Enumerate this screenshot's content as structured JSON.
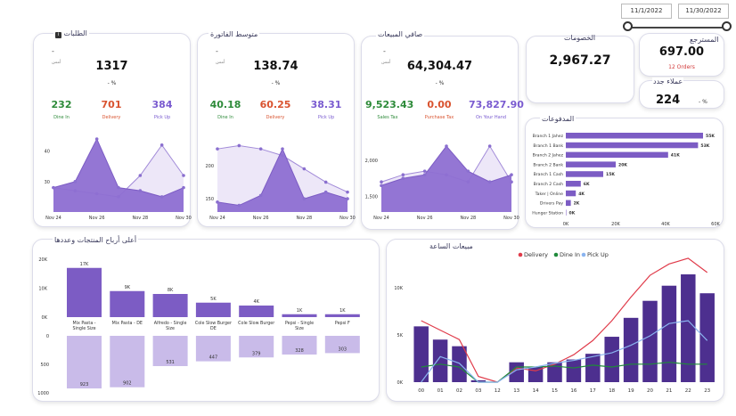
{
  "date_slicer": {
    "start": "11/1/2022",
    "end": "11/30/2022"
  },
  "orders_card": {
    "title": "الطلبات",
    "info_badge": "i",
    "dash": "-",
    "sub": "أمس",
    "value": "1317",
    "pct": "- %",
    "metrics": [
      {
        "value": "232",
        "label": "Dine In",
        "color": "#2e8b3a"
      },
      {
        "value": "701",
        "label": "Delivery",
        "color": "#d9532f"
      },
      {
        "value": "384",
        "label": "Pick Up",
        "color": "#7a5bd0"
      }
    ]
  },
  "avg_invoice_card": {
    "title": "متوسط الفاتورة",
    "dash": "-",
    "sub": "أمس",
    "value": "138.74",
    "pct": "- %",
    "metrics": [
      {
        "value": "40.18",
        "label": "Dine In",
        "color": "#2e8b3a"
      },
      {
        "value": "60.25",
        "label": "Delivery",
        "color": "#d9532f"
      },
      {
        "value": "38.31",
        "label": "Pick Up",
        "color": "#7a5bd0"
      }
    ]
  },
  "net_sales_card": {
    "title": "صافي المبيعات",
    "dash": "-",
    "sub": "أمس",
    "value": "64,304.47",
    "pct": "- %",
    "metrics": [
      {
        "value": "9,523.43",
        "label": "Sales Tax",
        "color": "#2e8b3a"
      },
      {
        "value": "0.00",
        "label": "Purchase Tax",
        "color": "#d9532f"
      },
      {
        "value": "73,827.90",
        "label": "On Your Hand",
        "color": "#7a5bd0"
      }
    ]
  },
  "discounts_card": {
    "title": "الخصومات",
    "value": "2,967.27"
  },
  "returns_card": {
    "title": "المسترجع",
    "value": "697.00",
    "orders": "12 Orders"
  },
  "new_customers_card": {
    "title": "عملاء جدد",
    "value": "224",
    "pct": "%",
    "dash": "-"
  },
  "payments_card": {
    "title": "المدفوعات"
  },
  "top_products_card": {
    "title": "أعلى أرباح المنتجات وعددها"
  },
  "hourly_card": {
    "title": "مبيعات الساعة"
  },
  "colors": {
    "accent": "#7c5cc4",
    "accent_light": "#c9bbe9",
    "delivery": "#e03b4a",
    "dinein": "#1f8a3a",
    "pickup": "#8ab4f0",
    "bar_dark": "#4d2f8f"
  },
  "chart_data": [
    {
      "name": "orders_trend",
      "type": "area",
      "x": [
        "Nov 24",
        "Nov 25",
        "Nov 26",
        "Nov 27",
        "Nov 28",
        "Nov 29",
        "Nov 30"
      ],
      "xticks": [
        "Nov 24",
        "Nov 26",
        "Nov 28",
        "Nov 30"
      ],
      "yticks": [
        30,
        40
      ],
      "ylim": [
        20,
        44
      ],
      "series": [
        {
          "values": [
            28,
            30,
            44,
            28,
            27,
            25,
            28
          ]
        },
        {
          "values": [
            28,
            27,
            26,
            25,
            32,
            42,
            32
          ]
        }
      ]
    },
    {
      "name": "avg_invoice_trend",
      "type": "area",
      "x": [
        "Nov 24",
        "Nov 25",
        "Nov 26",
        "Nov 27",
        "Nov 28",
        "Nov 29",
        "Nov 30"
      ],
      "xticks": [
        "Nov 24",
        "Nov 26",
        "Nov 28",
        "Nov 30"
      ],
      "yticks": [
        150,
        200
      ],
      "ylim": [
        130,
        240
      ],
      "series": [
        {
          "values": [
            145,
            140,
            155,
            225,
            150,
            160,
            150
          ]
        },
        {
          "values": [
            225,
            230,
            225,
            215,
            195,
            175,
            160
          ]
        }
      ]
    },
    {
      "name": "net_sales_trend",
      "type": "area",
      "x": [
        "Nov 24",
        "Nov 25",
        "Nov 26",
        "Nov 27",
        "Nov 28",
        "Nov 29",
        "Nov 30"
      ],
      "xticks": [
        "Nov 24",
        "Nov 26",
        "Nov 28",
        "Nov 30"
      ],
      "yticks": [
        "1,500",
        "2,000"
      ],
      "ytick_values": [
        1500,
        2000
      ],
      "ylim": [
        1280,
        2300
      ],
      "series": [
        {
          "values": [
            1650,
            1750,
            1800,
            2200,
            1850,
            1700,
            1800
          ]
        },
        {
          "values": [
            1700,
            1800,
            1850,
            1800,
            1700,
            2200,
            1700
          ]
        }
      ]
    },
    {
      "name": "payments",
      "type": "bar",
      "orientation": "horizontal",
      "categories": [
        "Branch 1 Jahez",
        "Branch 1 Bank",
        "Branch 2 Jahez",
        "Branch 2 Bank",
        "Branch 1 Cash",
        "Branch 2 Cash",
        "Taker | Online",
        "Drivers Pay",
        "Hunger Station"
      ],
      "values": [
        55,
        53,
        41,
        20,
        15,
        6,
        4,
        2,
        0
      ],
      "labels": [
        "55K",
        "53K",
        "41K",
        "20K",
        "15K",
        "6K",
        "4K",
        "2K",
        "0K"
      ],
      "xticks": [
        "0K",
        "20K",
        "40K",
        "60K"
      ],
      "xlim": [
        0,
        60
      ]
    },
    {
      "name": "top_products",
      "type": "bar",
      "categories": [
        "Mix Pasta - Single Size",
        "Mix Pasta - DE",
        "Alfredo - Single Size",
        "Cole Slow Burger DE",
        "Cole Slow Burger",
        "Pepsi - Single Size",
        "Pepsi F"
      ],
      "profit_values": [
        17,
        9,
        8,
        5,
        4,
        1,
        1
      ],
      "profit_labels": [
        "17K",
        "9K",
        "8K",
        "5K",
        "4K",
        "1K",
        "1K"
      ],
      "profit_ticks": [
        "20K",
        "10K",
        "0K"
      ],
      "profit_ylim": [
        0,
        20
      ],
      "count_values": [
        923,
        902,
        531,
        447,
        379,
        328,
        303
      ],
      "count_ticks": [
        "0",
        "500",
        "1000"
      ],
      "count_ylim": [
        0,
        1000
      ]
    },
    {
      "name": "hourly_sales",
      "type": "bar+line",
      "categories": [
        "00",
        "01",
        "02",
        "03",
        "12",
        "13",
        "14",
        "15",
        "16",
        "17",
        "18",
        "19",
        "20",
        "21",
        "22",
        "23"
      ],
      "yticks": [
        "0K",
        "5K",
        "10K"
      ],
      "ylim": [
        0,
        13000
      ],
      "legend": [
        "Delivery",
        "Dine In",
        "Pick Up"
      ],
      "bars": [
        5900,
        4500,
        3800,
        200,
        0,
        2100,
        1600,
        2100,
        2400,
        3000,
        4800,
        6800,
        8600,
        10200,
        11400,
        9400
      ],
      "series": [
        {
          "name": "Delivery",
          "values": [
            6500,
            5500,
            4500,
            600,
            0,
            1500,
            1200,
            1900,
            2900,
            4400,
            6500,
            9000,
            11300,
            12500,
            13100,
            11600
          ]
        },
        {
          "name": "Dine In",
          "values": [
            1600,
            1900,
            1600,
            0,
            0,
            1600,
            1600,
            1700,
            1500,
            1800,
            1600,
            1900,
            1900,
            2100,
            1900,
            1900
          ]
        },
        {
          "name": "Pick Up",
          "values": [
            0,
            2700,
            2000,
            0,
            0,
            1300,
            1600,
            2000,
            2300,
            2700,
            3100,
            3900,
            4900,
            6200,
            6500,
            4400
          ]
        }
      ]
    }
  ]
}
